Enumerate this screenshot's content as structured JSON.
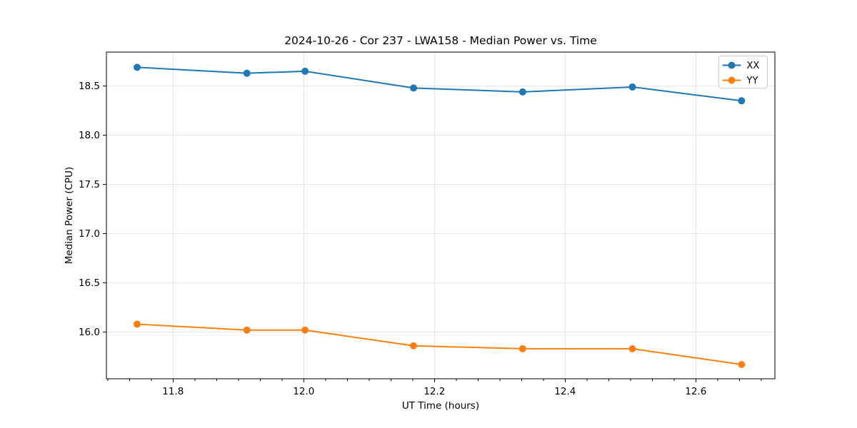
{
  "chart_data": {
    "type": "line",
    "title": "2024-10-26 - Cor 237 - LWA158 - Median Power vs. Time",
    "xlabel": "UT Time (hours)",
    "ylabel": "Median Power (CPU)",
    "x": [
      11.745,
      11.913,
      12.002,
      12.168,
      12.335,
      12.503,
      12.67
    ],
    "series": [
      {
        "name": "XX",
        "color": "#1f77b4",
        "values": [
          18.69,
          18.63,
          18.65,
          18.48,
          18.44,
          18.49,
          18.35
        ]
      },
      {
        "name": "YY",
        "color": "#ff7f0e",
        "values": [
          16.08,
          16.02,
          16.02,
          15.86,
          15.83,
          15.83,
          15.67
        ]
      }
    ],
    "xlim": [
      11.698,
      12.721
    ],
    "ylim": [
      15.525,
      18.845
    ],
    "xticks": [
      11.8,
      12.0,
      12.2,
      12.4,
      12.6
    ],
    "xtick_labels": [
      "11.8",
      "12.0",
      "12.2",
      "12.4",
      "12.6"
    ],
    "yticks": [
      16.0,
      16.5,
      17.0,
      17.5,
      18.0,
      18.5
    ],
    "ytick_labels": [
      "16.0",
      "16.5",
      "17.0",
      "17.5",
      "18.0",
      "18.5"
    ],
    "x_minor_divisions": 6,
    "grid": true,
    "legend_position": "upper right",
    "colors": {
      "background": "#ffffff",
      "spine": "#000000",
      "grid": "#b0b0b0",
      "tick": "#000000",
      "legend_border": "#cccccc",
      "legend_background": "#ffffff"
    }
  }
}
